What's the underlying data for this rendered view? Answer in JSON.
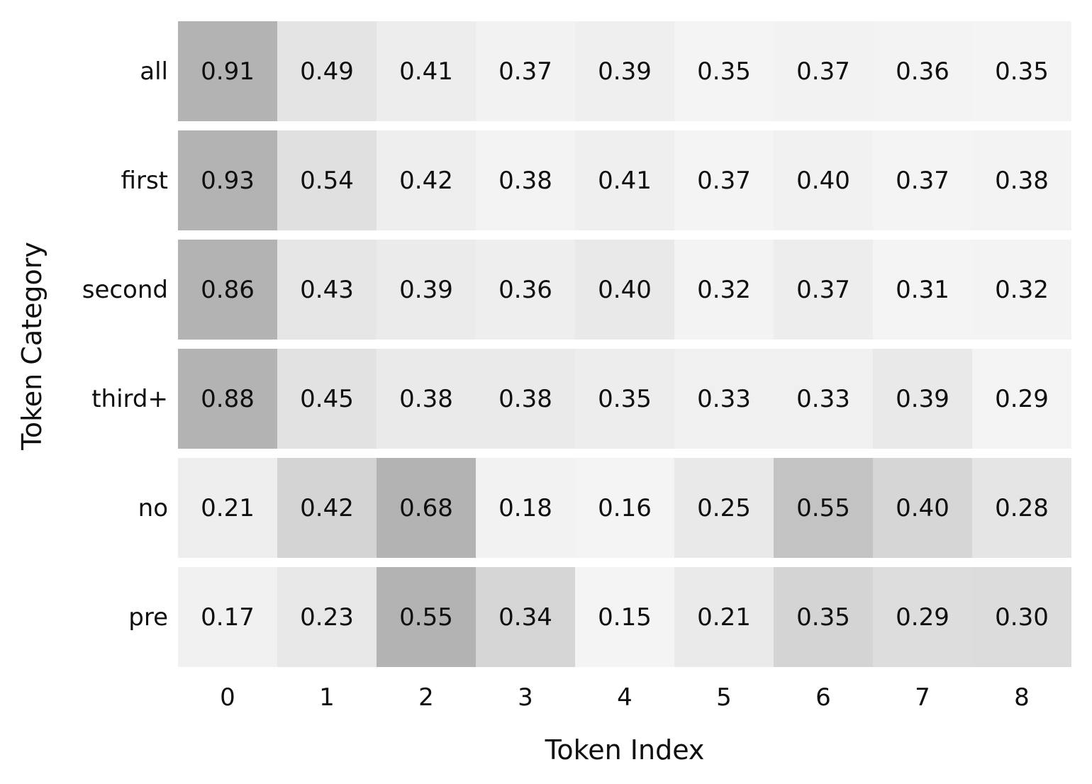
{
  "chart_data": {
    "type": "heatmap",
    "title": "",
    "xlabel": "Token Index",
    "ylabel": "Token Category",
    "x_ticks": [
      "0",
      "1",
      "2",
      "3",
      "4",
      "5",
      "6",
      "7",
      "8"
    ],
    "categories": [
      "all",
      "first",
      "second",
      "third+",
      "no",
      "pre"
    ],
    "rows": [
      {
        "label": "all",
        "values": [
          0.91,
          0.49,
          0.41,
          0.37,
          0.39,
          0.35,
          0.37,
          0.36,
          0.35
        ]
      },
      {
        "label": "first",
        "values": [
          0.93,
          0.54,
          0.42,
          0.38,
          0.41,
          0.37,
          0.4,
          0.37,
          0.38
        ]
      },
      {
        "label": "second",
        "values": [
          0.86,
          0.43,
          0.39,
          0.36,
          0.4,
          0.32,
          0.37,
          0.31,
          0.32
        ]
      },
      {
        "label": "third+",
        "values": [
          0.88,
          0.45,
          0.38,
          0.38,
          0.35,
          0.33,
          0.33,
          0.39,
          0.29
        ]
      },
      {
        "label": "no",
        "values": [
          0.21,
          0.42,
          0.68,
          0.18,
          0.16,
          0.25,
          0.55,
          0.4,
          0.28
        ]
      },
      {
        "label": "pre",
        "values": [
          0.17,
          0.23,
          0.55,
          0.34,
          0.15,
          0.21,
          0.35,
          0.29,
          0.3
        ]
      }
    ],
    "value_decimals": 2,
    "annotations_shown": true,
    "legend_position": "none",
    "grid": false,
    "colormap": {
      "normalization": "per-row",
      "light": "#f4f4f4",
      "dark": "#b3b3b3"
    },
    "value_text_color": "#0f0f0f",
    "background_color": "#ffffff"
  }
}
